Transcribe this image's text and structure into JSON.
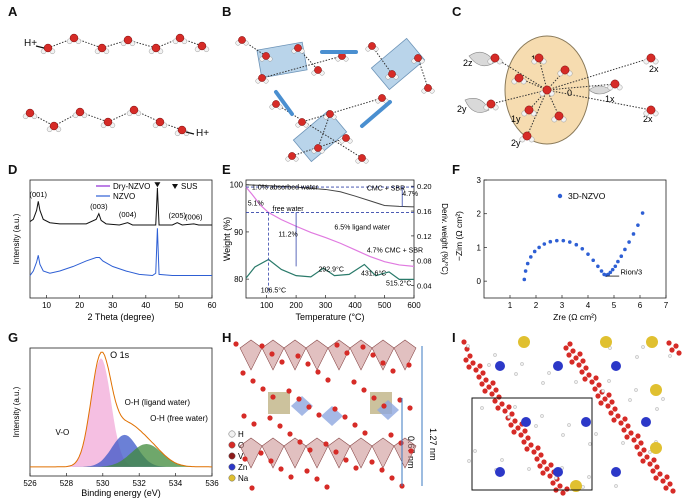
{
  "panels": {
    "A": {
      "label": "A",
      "proton_labels": [
        "H+",
        "H+"
      ]
    },
    "B": {
      "label": "B"
    },
    "C": {
      "label": "C",
      "sites": [
        "2z",
        "1z",
        "0",
        "1x",
        "2x",
        "2x",
        "2y",
        "1y",
        "2y"
      ]
    },
    "D": {
      "label": "D"
    },
    "E": {
      "label": "E"
    },
    "F": {
      "label": "F"
    },
    "G": {
      "label": "G"
    },
    "H": {
      "label": "H",
      "dim1": "1.27 nm",
      "dim2": "0.67 nm",
      "legend": [
        "H",
        "O",
        "V",
        "Zn",
        "Na"
      ]
    },
    "I": {
      "label": "I"
    }
  },
  "colors": {
    "oxygen": "#d62b27",
    "hydrogen": "#f2f2f2",
    "vanadium": "#8b1a1a",
    "zinc": "#2c38c8",
    "sodium": "#e0c030",
    "box": "#b9d4ea",
    "dry": "#8e2bd6",
    "nzvo": "#2e5fd4",
    "tg": "#e07ae0",
    "dtg": "#2a7a6a"
  },
  "chart_data": [
    {
      "id": "D",
      "type": "line",
      "xlabel": "2 Theta (degree)",
      "ylabel": "Intensity (a.u.)",
      "xlim": [
        5,
        60
      ],
      "x_ticks": [
        10,
        20,
        30,
        40,
        50,
        60
      ],
      "legend": [
        "Dry-NZVO",
        "NZVO",
        "SUS"
      ],
      "peaks": [
        {
          "label": "(001)",
          "x": 7.5
        },
        {
          "label": "(003)",
          "x": 25.8
        },
        {
          "label": "(004)",
          "x": 34.5
        },
        {
          "label": "(205)",
          "x": 49.5
        },
        {
          "label": "(006)",
          "x": 54.5
        }
      ],
      "series": [
        {
          "name": "Dry-NZVO",
          "x": [
            5,
            6,
            7,
            7.5,
            8,
            9,
            11,
            14,
            18,
            22,
            25,
            25.8,
            26.5,
            28,
            32,
            34.5,
            36,
            40,
            43,
            43.5,
            44,
            48,
            49.5,
            51,
            54.5,
            56,
            60
          ],
          "y": [
            0.68,
            0.7,
            0.78,
            0.86,
            0.78,
            0.7,
            0.67,
            0.66,
            0.66,
            0.66,
            0.7,
            0.75,
            0.69,
            0.66,
            0.65,
            0.67,
            0.65,
            0.65,
            0.65,
            0.98,
            0.65,
            0.65,
            0.67,
            0.65,
            0.66,
            0.65,
            0.65
          ]
        },
        {
          "name": "NZVO",
          "x": [
            5,
            6,
            7,
            7.5,
            8,
            9,
            11,
            14,
            18,
            22,
            25,
            26,
            27,
            30,
            34,
            38,
            42,
            43,
            43.5,
            44,
            48,
            52,
            56,
            60
          ],
          "y": [
            0.2,
            0.24,
            0.32,
            0.38,
            0.3,
            0.24,
            0.22,
            0.24,
            0.28,
            0.33,
            0.36,
            0.36,
            0.33,
            0.28,
            0.24,
            0.21,
            0.2,
            0.22,
            0.62,
            0.21,
            0.2,
            0.2,
            0.2,
            0.2
          ]
        }
      ]
    },
    {
      "id": "E",
      "type": "line",
      "xlabel": "Temperature (°C)",
      "ylabel": "Weight (%)",
      "ylabel_right": "Deriv. weight (%/°C)",
      "xlim": [
        30,
        600
      ],
      "ylim": [
        76,
        101
      ],
      "x_ticks": [
        100,
        200,
        300,
        400,
        500,
        600
      ],
      "y_ticks": [
        80,
        90,
        100
      ],
      "y_ticks_right": [
        "0.04",
        "0.08",
        "0.12",
        "0.16",
        "0.20"
      ],
      "annotations": [
        "1.0% absorbed water",
        "5.1%",
        "free water",
        "11.2%",
        "6.5% ligand water",
        "4.7% CMC + SBR",
        "CMC + SBR",
        "4.7%",
        "106.5°C",
        "292.9°C",
        "431.6°C",
        "515.2°C"
      ],
      "series": [
        {
          "name": "NZVO weight",
          "x": [
            30,
            50,
            80,
            106.5,
            150,
            200,
            250,
            300,
            350,
            400,
            450,
            500,
            550,
            600
          ],
          "y": [
            99.5,
            98.0,
            95.6,
            94.1,
            92.6,
            91.2,
            89.9,
            88.8,
            87.6,
            86.2,
            84.8,
            83.7,
            83.0,
            82.7
          ]
        },
        {
          "name": "CMC + SBR weight",
          "x": [
            30,
            100,
            200,
            300,
            350,
            400,
            450,
            500,
            550,
            600
          ],
          "y": [
            100.0,
            99.8,
            99.5,
            99.0,
            98.5,
            97.6,
            96.6,
            95.6,
            95.4,
            95.3
          ]
        },
        {
          "name": "Deriv. weight",
          "x": [
            30,
            60,
            106.5,
            150,
            200,
            250,
            292.9,
            330,
            380,
            431.6,
            470,
            515.2,
            550,
            600
          ],
          "y": [
            0.052,
            0.07,
            0.082,
            0.066,
            0.056,
            0.054,
            0.068,
            0.056,
            0.058,
            0.074,
            0.056,
            0.062,
            0.05,
            0.05
          ]
        }
      ]
    },
    {
      "id": "F",
      "type": "scatter",
      "xlabel": "Zre (Ω cm²)",
      "ylabel": "−Zim (Ω cm²)",
      "xlim": [
        0,
        7
      ],
      "ylim": [
        -0.5,
        3
      ],
      "x_ticks": [
        1,
        2,
        3,
        4,
        5,
        6,
        7
      ],
      "y_ticks": [
        0,
        1,
        2,
        3
      ],
      "legend": [
        "3D-NZVO"
      ],
      "annotation": "Rion/3",
      "series": [
        {
          "name": "3D-NZVO",
          "x": [
            1.55,
            1.6,
            1.68,
            1.8,
            1.95,
            2.12,
            2.32,
            2.55,
            2.8,
            3.05,
            3.3,
            3.55,
            3.78,
            4.0,
            4.2,
            4.38,
            4.52,
            4.62,
            4.7,
            4.78,
            4.86,
            4.95,
            5.05,
            5.15,
            5.28,
            5.42,
            5.58,
            5.75,
            5.92,
            6.1
          ],
          "y": [
            0.05,
            0.3,
            0.52,
            0.72,
            0.88,
            1.0,
            1.1,
            1.17,
            1.2,
            1.2,
            1.16,
            1.08,
            0.96,
            0.8,
            0.62,
            0.44,
            0.3,
            0.2,
            0.18,
            0.2,
            0.26,
            0.34,
            0.44,
            0.58,
            0.74,
            0.94,
            1.16,
            1.4,
            1.66,
            2.02
          ]
        }
      ]
    },
    {
      "id": "G",
      "type": "area",
      "title": "O 1s",
      "xlabel": "Binding energy (eV)",
      "ylabel": "Intensity (a.u.)",
      "xlim": [
        526,
        536
      ],
      "x_ticks": [
        526,
        528,
        530,
        532,
        534,
        536
      ],
      "components": [
        {
          "name": "V-O",
          "center": 529.9,
          "height": 0.95,
          "width": 0.55
        },
        {
          "name": "O-H (ligand water)",
          "center": 531.2,
          "height": 0.28,
          "width": 0.7
        },
        {
          "name": "O-H (free water)",
          "center": 532.4,
          "height": 0.2,
          "width": 0.85
        }
      ]
    }
  ]
}
